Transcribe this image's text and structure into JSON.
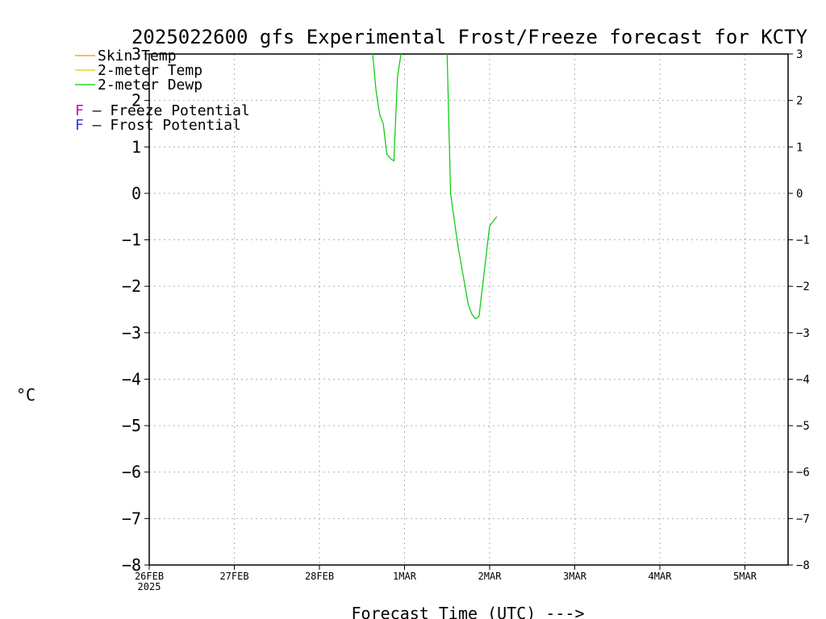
{
  "chart_data": {
    "type": "line",
    "title": "2025022600 gfs Experimental Frost/Freeze forecast for KCTY",
    "xlabel": "Forecast Time (UTC) --->",
    "ylabel": "°C",
    "ylim": [
      -8,
      3
    ],
    "xlim_days": [
      "2025-02-26 00Z",
      "2025-03-05 13Z"
    ],
    "grid": true,
    "x_tick_labels": [
      "26FEB",
      "27FEB",
      "28FEB",
      "1MAR",
      "2MAR",
      "3MAR",
      "4MAR",
      "5MAR"
    ],
    "x_year_label": "2025",
    "y_tick_labels": [
      "3",
      "2",
      "1",
      "0",
      "−1",
      "−2",
      "−3",
      "−4",
      "−5",
      "−6",
      "−7",
      "−8"
    ],
    "legend_placement": "top-left",
    "legend": [
      {
        "label": "Skin Temp",
        "color": "#ff8c00"
      },
      {
        "label": "2-meter Temp",
        "color": "#e6c800"
      },
      {
        "label": "2-meter Dewp",
        "color": "#00cc00"
      }
    ],
    "potential_legend": [
      {
        "letter": "F",
        "text": " – Freeze Potential",
        "color": "#cc00cc"
      },
      {
        "letter": "F",
        "text": " – Frost Potential",
        "color": "#3333ff"
      }
    ],
    "series": [
      {
        "name": "2-meter Dewp",
        "color": "#00cc00",
        "x": [
          "2025-02-28 15Z",
          "2025-02-28 16Z",
          "2025-02-28 17Z",
          "2025-02-28 18Z",
          "2025-02-28 19Z",
          "2025-02-28 20Z",
          "2025-02-28 21Z",
          "2025-02-28 22Z",
          "2025-02-28 23Z"
        ],
        "y": [
          3.0,
          2.2,
          1.7,
          1.5,
          0.85,
          0.75,
          0.7,
          2.5,
          3.0
        ]
      },
      {
        "name": "2-meter Dewp",
        "color": "#00cc00",
        "x": [
          "2025-03-01 12Z",
          "2025-03-01 13Z",
          "2025-03-01 15Z",
          "2025-03-01 18Z",
          "2025-03-01 19Z",
          "2025-03-01 20Z",
          "2025-03-01 21Z",
          "2025-03-01 22Z",
          "2025-03-02 00Z",
          "2025-03-02 01Z",
          "2025-03-02 02Z"
        ],
        "y": [
          3.0,
          0.0,
          -1.1,
          -2.4,
          -2.6,
          -2.7,
          -2.65,
          -2.0,
          -0.7,
          -0.6,
          -0.5
        ]
      }
    ]
  }
}
